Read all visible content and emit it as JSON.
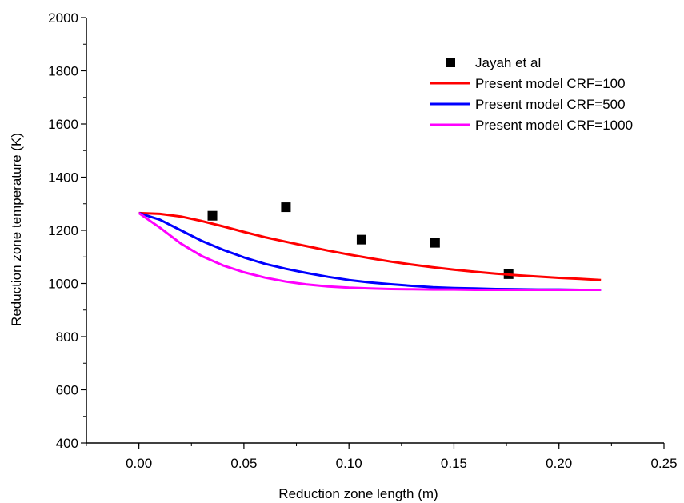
{
  "chart_data": {
    "type": "line",
    "title": "",
    "xlabel": "Reduction zone length (m)",
    "ylabel": "Reduction zone temperature (K)",
    "xlim": [
      -0.025,
      0.25
    ],
    "ylim": [
      400,
      2000
    ],
    "xticks": [
      "0.00",
      "0.05",
      "0.10",
      "0.15",
      "0.20",
      "0.25"
    ],
    "yticks": [
      "400",
      "600",
      "800",
      "1000",
      "1200",
      "1400",
      "1600",
      "1800",
      "2000"
    ],
    "grid": false,
    "legend_position": "top-right",
    "series": [
      {
        "name": "Jayah et al",
        "kind": "scatter",
        "marker": "square",
        "color": "#000000",
        "x": [
          0.035,
          0.07,
          0.106,
          0.141,
          0.176
        ],
        "y": [
          1255,
          1287,
          1165,
          1153,
          1035
        ]
      },
      {
        "name": "Present model CRF=100",
        "kind": "line",
        "color": "#ff0000",
        "x": [
          0.0,
          0.01,
          0.02,
          0.03,
          0.04,
          0.05,
          0.06,
          0.07,
          0.08,
          0.09,
          0.1,
          0.11,
          0.12,
          0.13,
          0.14,
          0.15,
          0.16,
          0.17,
          0.18,
          0.19,
          0.2,
          0.21,
          0.22
        ],
        "y": [
          1265,
          1262,
          1252,
          1235,
          1215,
          1194,
          1174,
          1157,
          1140,
          1124,
          1109,
          1095,
          1082,
          1071,
          1061,
          1052,
          1044,
          1037,
          1031,
          1026,
          1021,
          1017,
          1013
        ]
      },
      {
        "name": "Present model CRF=500",
        "kind": "line",
        "color": "#0000ff",
        "x": [
          0.0,
          0.01,
          0.02,
          0.03,
          0.04,
          0.05,
          0.06,
          0.07,
          0.08,
          0.09,
          0.1,
          0.11,
          0.12,
          0.13,
          0.14,
          0.15,
          0.16,
          0.17,
          0.18,
          0.19,
          0.2,
          0.21,
          0.22
        ],
        "y": [
          1265,
          1240,
          1200,
          1160,
          1127,
          1098,
          1074,
          1055,
          1039,
          1025,
          1013,
          1004,
          997,
          991,
          986,
          983,
          981,
          979,
          978,
          977,
          977,
          976,
          976
        ]
      },
      {
        "name": "Present model CRF=1000",
        "kind": "line",
        "color": "#ff00ff",
        "x": [
          0.0,
          0.01,
          0.02,
          0.03,
          0.04,
          0.05,
          0.06,
          0.07,
          0.08,
          0.09,
          0.1,
          0.11,
          0.12,
          0.13,
          0.14,
          0.15,
          0.16,
          0.17,
          0.18,
          0.19,
          0.2,
          0.21,
          0.22
        ],
        "y": [
          1265,
          1210,
          1150,
          1103,
          1068,
          1042,
          1022,
          1007,
          996,
          989,
          984,
          981,
          979,
          978,
          977,
          977,
          976,
          976,
          976,
          976,
          976,
          976,
          976
        ]
      }
    ]
  }
}
